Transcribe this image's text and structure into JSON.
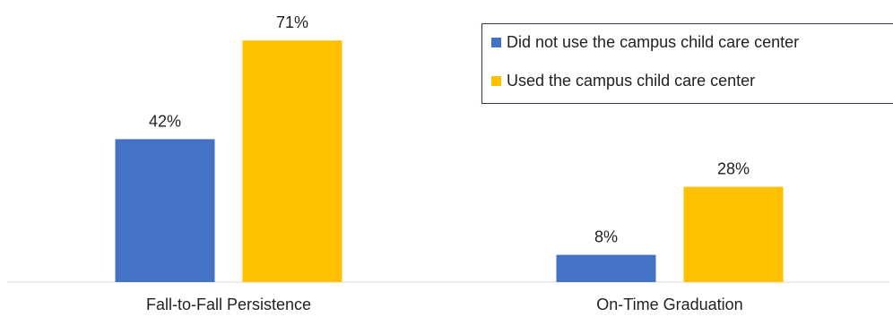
{
  "chart_data": {
    "type": "bar",
    "categories": [
      "Fall-to-Fall Persistence",
      "On-Time Graduation"
    ],
    "series": [
      {
        "name": "Did not use the campus child care center",
        "values": [
          42,
          8
        ],
        "labels": [
          "42%",
          "8%"
        ],
        "color": "#4472c4"
      },
      {
        "name": "Used the campus child care center",
        "values": [
          71,
          28
        ],
        "labels": [
          "71%",
          "28%"
        ],
        "color": "#ffc000"
      }
    ],
    "unit": "%",
    "ylim": [
      0,
      100
    ],
    "grid": false,
    "legend_position": "top-right"
  }
}
